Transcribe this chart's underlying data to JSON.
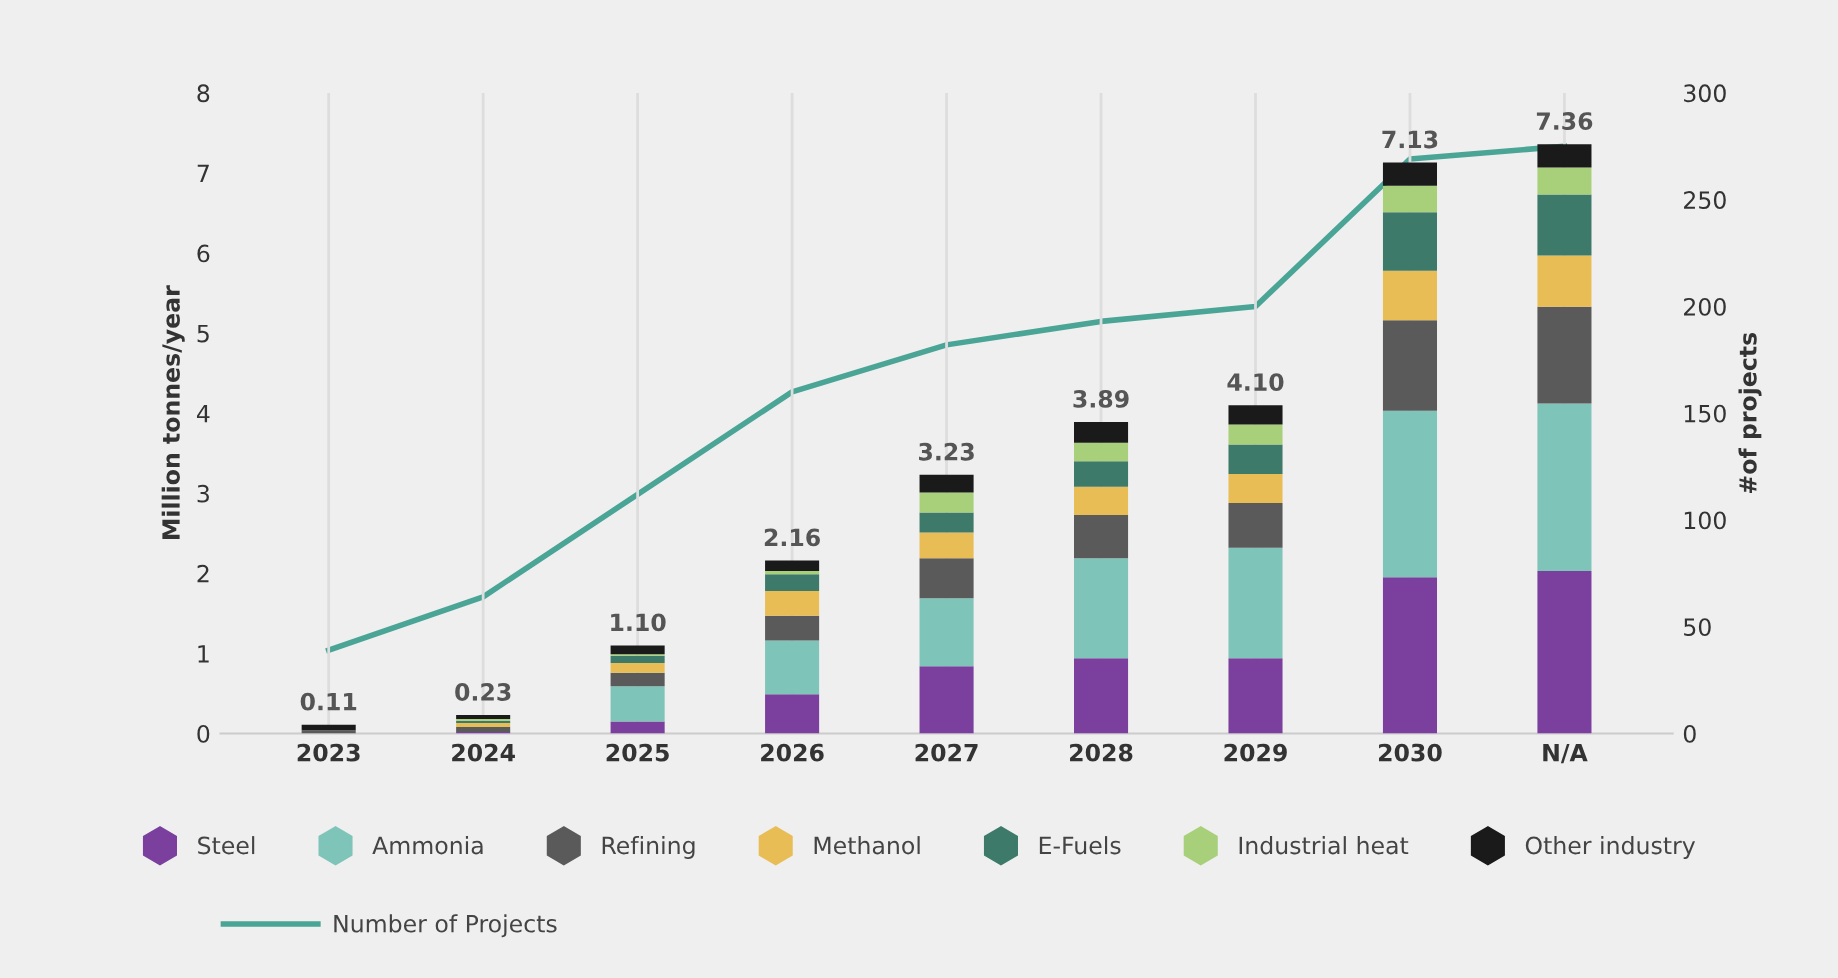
{
  "chart_data": {
    "type": "bar",
    "stacked": true,
    "ylabel": "Million tonnes/year",
    "y2label": "#of projects",
    "categories": [
      "2023",
      "2024",
      "2025",
      "2026",
      "2027",
      "2028",
      "2029",
      "2030",
      "N/A"
    ],
    "series": [
      {
        "name": "Steel",
        "color": "#7b3f9e",
        "values": [
          0,
          0.02,
          0.15,
          0.49,
          0.84,
          0.94,
          0.94,
          1.95,
          2.03
        ]
      },
      {
        "name": "Ammonia",
        "color": "#7fc4b8",
        "values": [
          0,
          0,
          0.44,
          0.67,
          0.85,
          1.25,
          1.38,
          2.08,
          2.09
        ]
      },
      {
        "name": "Refining",
        "color": "#5a5a5a",
        "values": [
          0.04,
          0.06,
          0.17,
          0.31,
          0.5,
          0.54,
          0.56,
          1.13,
          1.21
        ]
      },
      {
        "name": "Methanol",
        "color": "#e8bd55",
        "values": [
          0,
          0.05,
          0.12,
          0.31,
          0.32,
          0.35,
          0.36,
          0.62,
          0.64
        ]
      },
      {
        "name": "E-Fuels",
        "color": "#3e7a6a",
        "values": [
          0,
          0.03,
          0.09,
          0.21,
          0.25,
          0.32,
          0.37,
          0.73,
          0.76
        ]
      },
      {
        "name": "Industrial heat",
        "color": "#a8d07a",
        "values": [
          0,
          0.02,
          0.02,
          0.04,
          0.25,
          0.23,
          0.25,
          0.33,
          0.34
        ]
      },
      {
        "name": "Other industry",
        "color": "#1a1a1a",
        "values": [
          0.07,
          0.05,
          0.11,
          0.13,
          0.22,
          0.26,
          0.24,
          0.29,
          0.29
        ]
      },
      {
        "name": "Number of Projects",
        "type": "line",
        "axis": "y2",
        "color": "#4aa596",
        "values": [
          39,
          64,
          112,
          160,
          182,
          193,
          200,
          269,
          275
        ]
      }
    ],
    "totals": [
      "0.11",
      "0.23",
      "1.10",
      "2.16",
      "3.23",
      "3.89",
      "4.10",
      "7.13",
      "7.36"
    ],
    "ylim": [
      0,
      8
    ],
    "yticks": [
      0,
      1,
      2,
      3,
      4,
      5,
      6,
      7,
      8
    ],
    "y2lim": [
      0,
      300
    ],
    "y2ticks": [
      0,
      50,
      100,
      150,
      200,
      250,
      300
    ],
    "grid": "x",
    "legend": "bottom",
    "marker": "none"
  }
}
